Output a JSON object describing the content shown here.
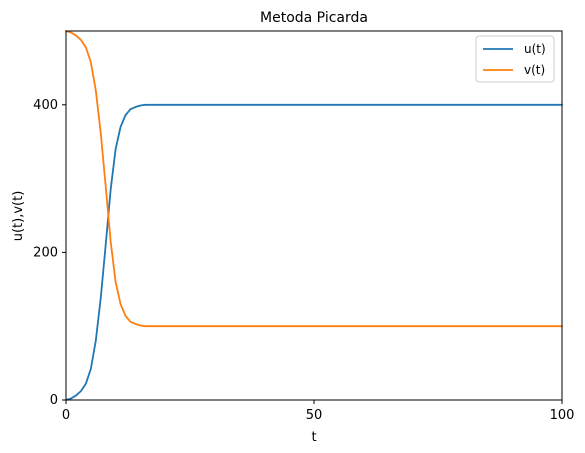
{
  "chart_data": {
    "type": "line",
    "title": "Metoda Picarda",
    "xlabel": "t",
    "ylabel": "u(t),v(t)",
    "xlim": [
      0,
      100
    ],
    "ylim": [
      0,
      500
    ],
    "xticks": [
      0,
      50,
      100
    ],
    "yticks": [
      0,
      200,
      400
    ],
    "grid": false,
    "legend_position": "upper right",
    "series": [
      {
        "name": "u(t)",
        "color": "#1f77b4",
        "x": [
          0,
          1,
          2,
          3,
          4,
          5,
          6,
          7,
          8,
          9,
          10,
          11,
          12,
          13,
          14,
          15,
          16,
          17,
          18,
          20,
          25,
          30,
          40,
          50,
          60,
          70,
          80,
          90,
          100
        ],
        "y": [
          0,
          2,
          6,
          12,
          22,
          42,
          80,
          138,
          210,
          285,
          340,
          370,
          386,
          394,
          397,
          399,
          400,
          400,
          400,
          400,
          400,
          400,
          400,
          400,
          400,
          400,
          400,
          400,
          400
        ]
      },
      {
        "name": "v(t)",
        "color": "#ff7f0e",
        "x": [
          0,
          1,
          2,
          3,
          4,
          5,
          6,
          7,
          8,
          9,
          10,
          11,
          12,
          13,
          14,
          15,
          16,
          17,
          18,
          20,
          25,
          30,
          40,
          50,
          60,
          70,
          80,
          90,
          100
        ],
        "y": [
          500,
          498,
          494,
          488,
          478,
          458,
          420,
          362,
          290,
          215,
          160,
          130,
          114,
          106,
          103,
          101,
          100,
          100,
          100,
          100,
          100,
          100,
          100,
          100,
          100,
          100,
          100,
          100,
          100
        ]
      }
    ]
  }
}
